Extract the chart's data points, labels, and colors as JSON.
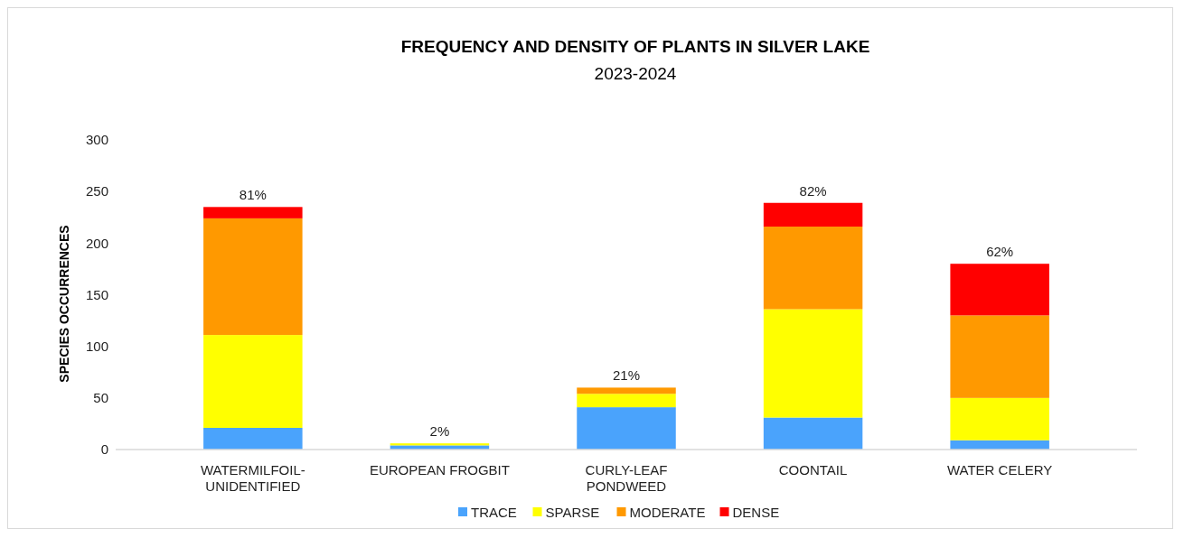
{
  "chart_data": {
    "type": "bar",
    "title": "FREQUENCY AND DENSITY OF PLANTS IN SILVER LAKE",
    "subtitle": "2023-2024",
    "ylabel": "SPECIES  OCCURRENCES",
    "categories": [
      "WATERMILFOIL-UNIDENTIFIED",
      "EUROPEAN FROGBIT",
      "CURLY-LEAF PONDWEED",
      "COONTAIL",
      "WATER CELERY"
    ],
    "stacked": true,
    "ylim": [
      0,
      300
    ],
    "yticks": [
      0,
      50,
      100,
      150,
      200,
      250,
      300
    ],
    "grid": false,
    "legend": "bottom",
    "series": [
      {
        "name": "TRACE",
        "color": "#4aa3fc",
        "values": [
          21,
          4,
          41,
          31,
          9
        ]
      },
      {
        "name": "SPARSE",
        "color": "#ffff00",
        "values": [
          90,
          2,
          13,
          105,
          41
        ]
      },
      {
        "name": "MODERATE",
        "color": "#ff9900",
        "values": [
          113,
          0,
          6,
          80,
          80
        ]
      },
      {
        "name": "DENSE",
        "color": "#ff0000",
        "values": [
          11,
          0,
          0,
          23,
          50
        ]
      }
    ],
    "annotations": [
      {
        "text": "81%",
        "x": "WATERMILFOIL-UNIDENTIFIED",
        "y": 235
      },
      {
        "text": "2%",
        "x": "EUROPEAN FROGBIT",
        "y": 6
      },
      {
        "text": "21%",
        "x": "CURLY-LEAF PONDWEED",
        "y": 60
      },
      {
        "text": "82%",
        "x": "COONTAIL",
        "y": 239
      },
      {
        "text": "62%",
        "x": "WATER CELERY",
        "y": 180
      }
    ]
  }
}
